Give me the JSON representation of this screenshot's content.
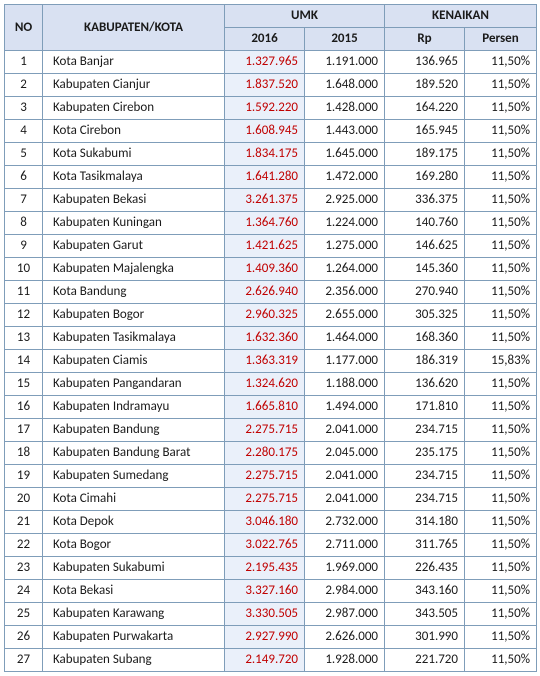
{
  "table": {
    "type": "table",
    "header_bg": "#d9e1f2",
    "border_color": "#7f9db9",
    "umk2016_text_color": "#c00000",
    "umk2016_bg": "#eaf0fa",
    "fontsize": 13,
    "columns": {
      "no": "NO",
      "kk": "KABUPATEN/KOTA",
      "umk": "UMK",
      "umk_2016": "2016",
      "umk_2015": "2015",
      "kenaikan": "KENAIKAN",
      "kenaikan_rp": "Rp",
      "kenaikan_persen": "Persen"
    },
    "rows": [
      {
        "no": "1",
        "kk": "Kota Banjar",
        "u16": "1.327.965",
        "u15": "1.191.000",
        "rp": "136.965",
        "pct": "11,50%"
      },
      {
        "no": "2",
        "kk": "Kabupaten Cianjur",
        "u16": "1.837.520",
        "u15": "1.648.000",
        "rp": "189.520",
        "pct": "11,50%"
      },
      {
        "no": "3",
        "kk": "Kabupaten Cirebon",
        "u16": "1.592.220",
        "u15": "1.428.000",
        "rp": "164.220",
        "pct": "11,50%"
      },
      {
        "no": "4",
        "kk": "Kota Cirebon",
        "u16": "1.608.945",
        "u15": "1.443.000",
        "rp": "165.945",
        "pct": "11,50%"
      },
      {
        "no": "5",
        "kk": "Kota Sukabumi",
        "u16": "1.834.175",
        "u15": "1.645.000",
        "rp": "189.175",
        "pct": "11,50%"
      },
      {
        "no": "6",
        "kk": "Kota Tasikmalaya",
        "u16": "1.641.280",
        "u15": "1.472.000",
        "rp": "169.280",
        "pct": "11,50%"
      },
      {
        "no": "7",
        "kk": "Kabupaten Bekasi",
        "u16": "3.261.375",
        "u15": "2.925.000",
        "rp": "336.375",
        "pct": "11,50%"
      },
      {
        "no": "8",
        "kk": "Kabupaten Kuningan",
        "u16": "1.364.760",
        "u15": "1.224.000",
        "rp": "140.760",
        "pct": "11,50%"
      },
      {
        "no": "9",
        "kk": "Kabupaten Garut",
        "u16": "1.421.625",
        "u15": "1.275.000",
        "rp": "146.625",
        "pct": "11,50%"
      },
      {
        "no": "10",
        "kk": "Kabupaten Majalengka",
        "u16": "1.409.360",
        "u15": "1.264.000",
        "rp": "145.360",
        "pct": "11,50%"
      },
      {
        "no": "11",
        "kk": "Kota Bandung",
        "u16": "2.626.940",
        "u15": "2.356.000",
        "rp": "270.940",
        "pct": "11,50%"
      },
      {
        "no": "12",
        "kk": "Kabupaten Bogor",
        "u16": "2.960.325",
        "u15": "2.655.000",
        "rp": "305.325",
        "pct": "11,50%"
      },
      {
        "no": "13",
        "kk": "Kabupaten Tasikmalaya",
        "u16": "1.632.360",
        "u15": "1.464.000",
        "rp": "168.360",
        "pct": "11,50%"
      },
      {
        "no": "14",
        "kk": "Kabupaten Ciamis",
        "u16": "1.363.319",
        "u15": "1.177.000",
        "rp": "186.319",
        "pct": "15,83%"
      },
      {
        "no": "15",
        "kk": "Kabupaten Pangandaran",
        "u16": "1.324.620",
        "u15": "1.188.000",
        "rp": "136.620",
        "pct": "11,50%"
      },
      {
        "no": "16",
        "kk": "Kabupaten Indramayu",
        "u16": "1.665.810",
        "u15": "1.494.000",
        "rp": "171.810",
        "pct": "11,50%"
      },
      {
        "no": "17",
        "kk": "Kabupaten Bandung",
        "u16": "2.275.715",
        "u15": "2.041.000",
        "rp": "234.715",
        "pct": "11,50%"
      },
      {
        "no": "18",
        "kk": "Kabupaten Bandung Barat",
        "u16": "2.280.175",
        "u15": "2.045.000",
        "rp": "235.175",
        "pct": "11,50%"
      },
      {
        "no": "19",
        "kk": "Kabupaten Sumedang",
        "u16": "2.275.715",
        "u15": "2.041.000",
        "rp": "234.715",
        "pct": "11,50%"
      },
      {
        "no": "20",
        "kk": "Kota Cimahi",
        "u16": "2.275.715",
        "u15": "2.041.000",
        "rp": "234.715",
        "pct": "11,50%"
      },
      {
        "no": "21",
        "kk": "Kota Depok",
        "u16": "3.046.180",
        "u15": "2.732.000",
        "rp": "314.180",
        "pct": "11,50%"
      },
      {
        "no": "22",
        "kk": "Kota Bogor",
        "u16": "3.022.765",
        "u15": "2.711.000",
        "rp": "311.765",
        "pct": "11,50%"
      },
      {
        "no": "23",
        "kk": "Kabupaten Sukabumi",
        "u16": "2.195.435",
        "u15": "1.969.000",
        "rp": "226.435",
        "pct": "11,50%"
      },
      {
        "no": "24",
        "kk": "Kota Bekasi",
        "u16": "3.327.160",
        "u15": "2.984.000",
        "rp": "343.160",
        "pct": "11,50%"
      },
      {
        "no": "25",
        "kk": "Kabupaten Karawang",
        "u16": "3.330.505",
        "u15": "2.987.000",
        "rp": "343.505",
        "pct": "11,50%"
      },
      {
        "no": "26",
        "kk": "Kabupaten Purwakarta",
        "u16": "2.927.990",
        "u15": "2.626.000",
        "rp": "301.990",
        "pct": "11,50%"
      },
      {
        "no": "27",
        "kk": "Kabupaten Subang",
        "u16": "2.149.720",
        "u15": "1.928.000",
        "rp": "221.720",
        "pct": "11,50%"
      }
    ]
  }
}
